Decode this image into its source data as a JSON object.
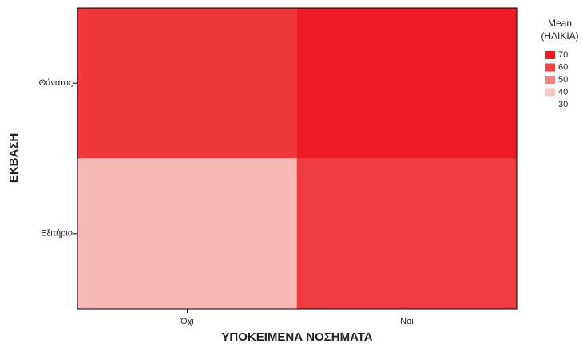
{
  "chart_data": {
    "type": "heatmap",
    "x_label": "ΥΠΟΚΕΙΜΕΝΑ ΝΟΣΗΜΑΤΑ",
    "y_label": "ΕΚΒΑΣΗ",
    "x_categories": [
      "Όχι",
      "Ναι"
    ],
    "y_categories": [
      "Θάνατος",
      "Εξιτήριο"
    ],
    "values": [
      [
        63,
        72
      ],
      [
        42,
        62
      ]
    ],
    "legend_title": [
      "Mean",
      "(ΗΛΙΚΙΑ)"
    ],
    "legend": [
      {
        "value": 70,
        "color": "#ed1c24"
      },
      {
        "value": 60,
        "color": "#ef4444"
      },
      {
        "value": 50,
        "color": "#f58383"
      },
      {
        "value": 40,
        "color": "#f9c5c5"
      },
      {
        "value": 30
      }
    ]
  }
}
